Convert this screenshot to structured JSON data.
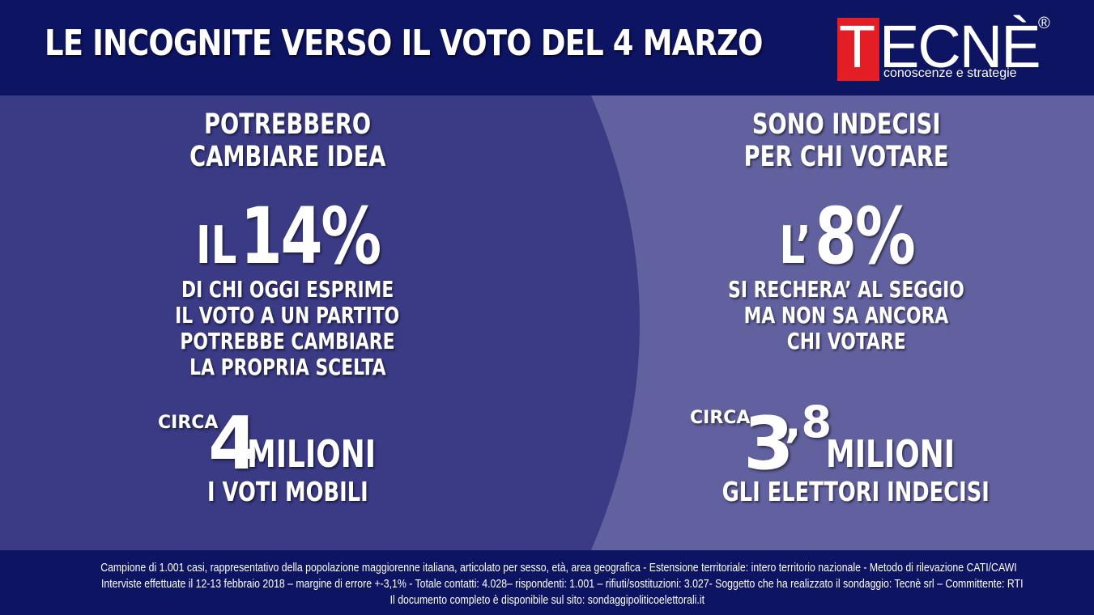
{
  "header": {
    "title": "LE INCOGNITE VERSO IL VOTO DEL 4 MARZO"
  },
  "logo": {
    "letter_t": "T",
    "letters_rest": "ECNÈ",
    "registered": "®",
    "tagline": "conoscenze e strategie"
  },
  "left": {
    "heading_line1": "POTREBBERO",
    "heading_line2": "CAMBIARE IDEA",
    "big_prefix": "IL",
    "big_value": "14%",
    "desc_line1": "DI CHI OGGI ESPRIME",
    "desc_line2": "IL VOTO A UN PARTITO",
    "desc_line3": "POTREBBE CAMBIARE",
    "desc_line4": "LA PROPRIA SCELTA",
    "circa": "CIRCA",
    "millions_number": "4",
    "millions_word": "MILIONI",
    "millions_caption": "I VOTI MOBILI"
  },
  "right": {
    "heading_line1": "SONO INDECISI",
    "heading_line2": "PER CHI VOTARE",
    "big_prefix": "L’",
    "big_value": "8%",
    "desc_line1": "SI RECHERA’ AL SEGGIO",
    "desc_line2": "MA NON SA ANCORA",
    "desc_line3": "CHI VOTARE",
    "circa": "CIRCA",
    "millions_number": "3",
    "millions_decimal": ",8",
    "millions_word": "MILIONI",
    "millions_caption": "GLI ELETTORI INDECISI"
  },
  "footer": {
    "line1": "Campione di  1.001 casi, rappresentativo della popolazione maggiorenne italiana, articolato per sesso, età, area geografica - Estensione territoriale: intero territorio nazionale - Metodo di rilevazione CATI/CAWI",
    "line2": "Interviste effettuate il 12-13 febbraio 2018 – margine di errore +-3,1%  - Totale contatti: 4.028– rispondenti: 1.001 – rifiuti/sostituzioni: 3.027- Soggetto che ha realizzato il sondaggio: Tecnè srl – Committente: RTI",
    "line3": "Il documento completo è disponibile sul sito: sondaggipoliticoelettorali.it"
  },
  "colors": {
    "navy": "#0d1462",
    "left_panel": "#3a3a85",
    "right_panel": "#62619f",
    "logo_red": "#e31e24",
    "text": "#ffffff"
  }
}
